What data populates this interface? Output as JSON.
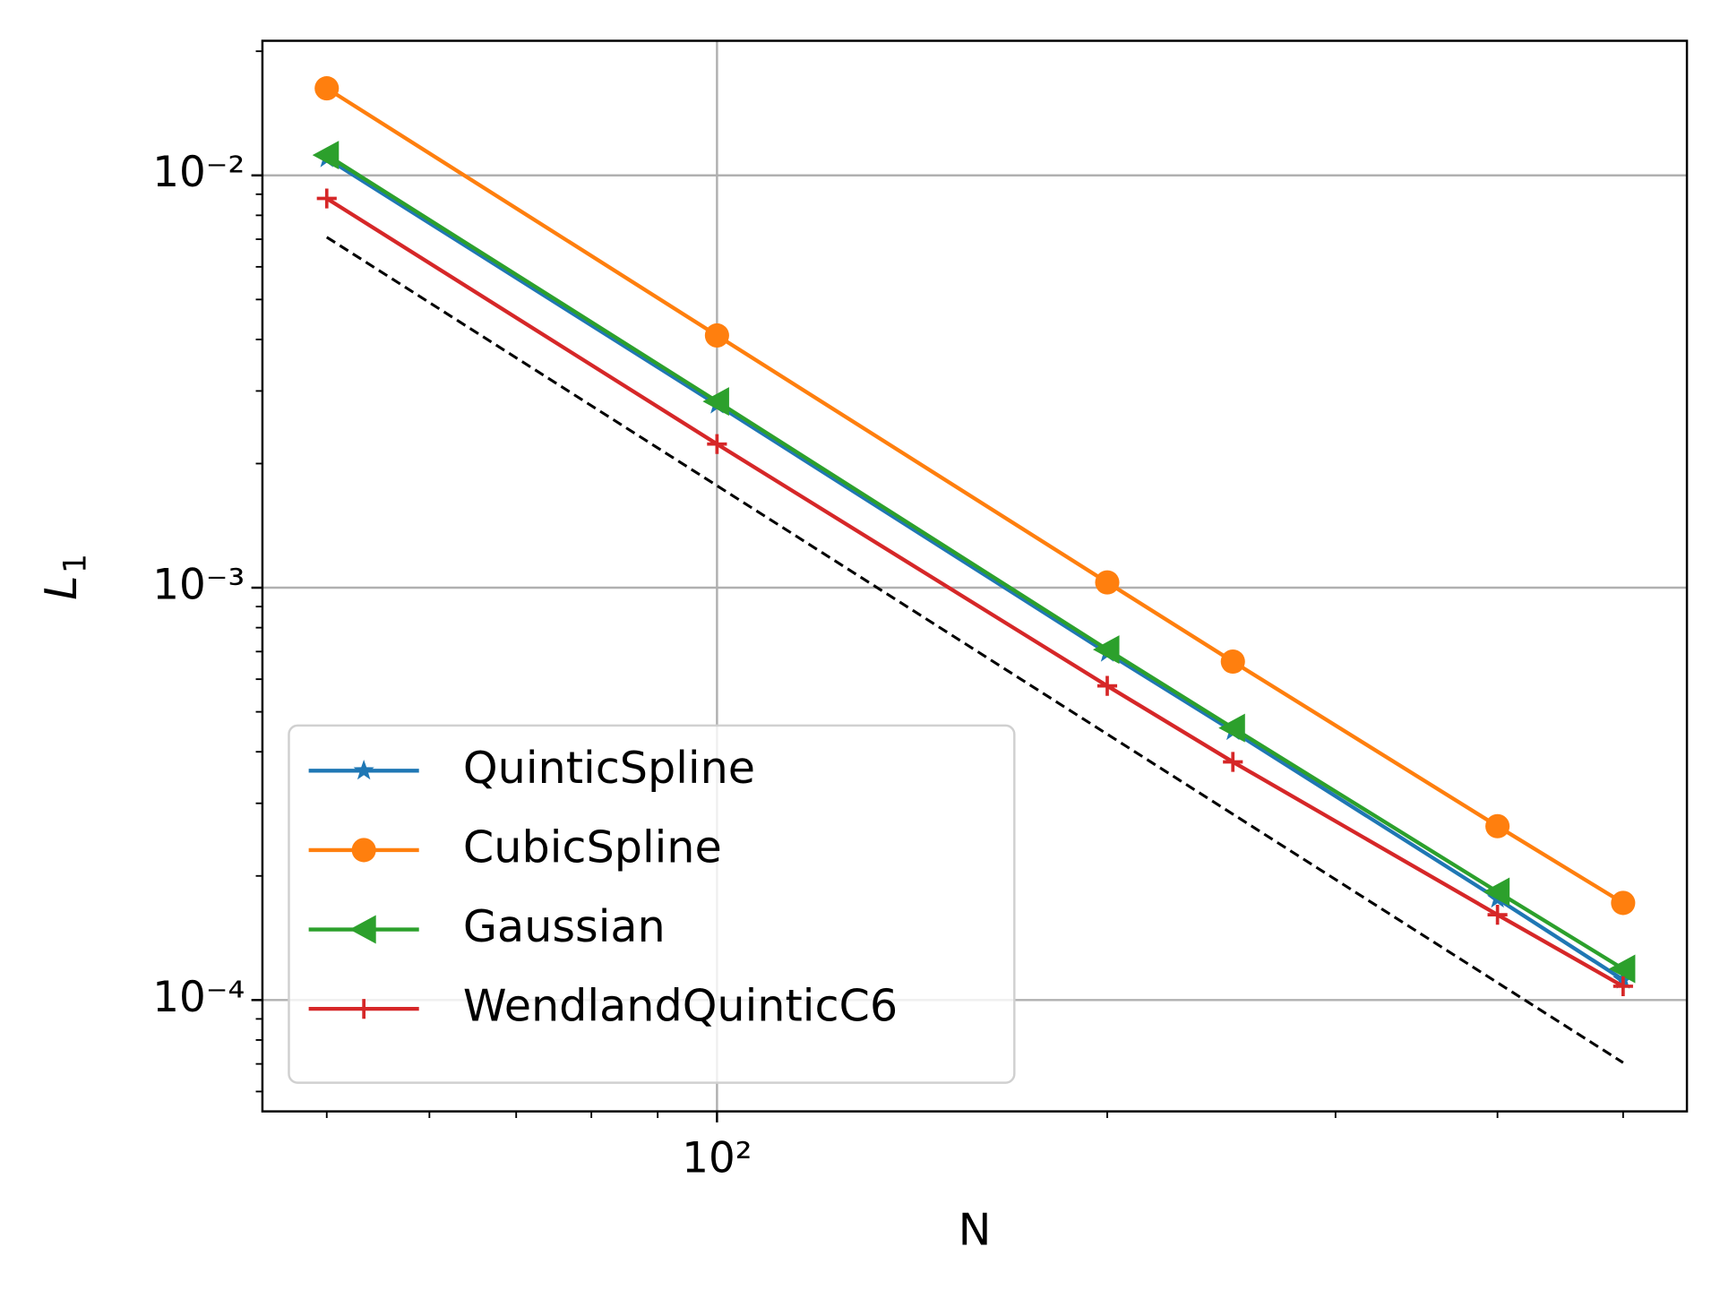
{
  "chart_data": {
    "type": "line",
    "xlabel": "N",
    "ylabel": "L",
    "ylabel_sub": "1",
    "log_x": true,
    "log_y": true,
    "grid": true,
    "legend": "lower left",
    "x": [
      50,
      100,
      200,
      250,
      400,
      500
    ],
    "xlim": [
      44.6,
      560
    ],
    "ylim": [
      5.37e-05,
      0.0212
    ],
    "xticks": [
      {
        "value": 100,
        "label": "10²"
      }
    ],
    "yticks": [
      {
        "value": 0.0001,
        "label": "10⁻⁴"
      },
      {
        "value": 0.001,
        "label": "10⁻³"
      },
      {
        "value": 0.01,
        "label": "10⁻²"
      }
    ],
    "xminor_ticks": [
      50,
      60,
      70,
      80,
      90,
      200,
      300,
      400,
      500
    ],
    "yminor_ticks": [
      6e-05,
      7e-05,
      8e-05,
      9e-05,
      0.0002,
      0.0003,
      0.0004,
      0.0005,
      0.0006,
      0.0007,
      0.0008,
      0.0009,
      0.002,
      0.003,
      0.004,
      0.005,
      0.006,
      0.007,
      0.008,
      0.009,
      0.02
    ],
    "series": [
      {
        "name": "QuinticSpline",
        "color": "#1f77b4",
        "marker": "star",
        "values": [
          0.011,
          0.00278,
          0.000695,
          0.000449,
          0.000176,
          0.000112
        ]
      },
      {
        "name": "CubicSpline",
        "color": "#ff7f0e",
        "marker": "circle",
        "values": [
          0.01626,
          0.00409,
          0.00103,
          0.000662,
          0.000264,
          0.000172
        ]
      },
      {
        "name": "Gaussian",
        "color": "#2ca02c",
        "marker": "triangle-left",
        "values": [
          0.0112,
          0.00283,
          0.000708,
          0.000457,
          0.000183,
          0.000119
        ]
      },
      {
        "name": "WendlandQuinticC6",
        "color": "#d62728",
        "marker": "plus",
        "values": [
          0.00879,
          0.00223,
          0.000578,
          0.000378,
          0.000161,
          0.000108
        ]
      },
      {
        "color": "#000000",
        "dashed": true,
        "x": [
          50,
          500
        ],
        "values": [
          0.00708,
          7.05e-05
        ]
      }
    ]
  }
}
